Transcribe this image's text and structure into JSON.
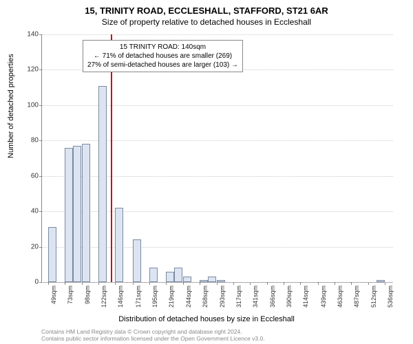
{
  "title_main": "15, TRINITY ROAD, ECCLESHALL, STAFFORD, ST21 6AR",
  "title_sub": "Size of property relative to detached houses in Eccleshall",
  "y_axis_label": "Number of detached properties",
  "x_axis_label": "Distribution of detached houses by size in Eccleshall",
  "annotation": {
    "line1": "15 TRINITY ROAD: 140sqm",
    "line2": "← 71% of detached houses are smaller (269)",
    "line3": "27% of semi-detached houses are larger (103) →"
  },
  "footer_line1": "Contains HM Land Registry data © Crown copyright and database right 2024.",
  "footer_line2": "Contains public sector information licensed under the Open Government Licence v3.0.",
  "chart": {
    "type": "histogram",
    "ylim": [
      0,
      140
    ],
    "ytick_step": 20,
    "marker_x_value": 140,
    "marker_color": "#cc0000",
    "bar_fill": "#dce4f2",
    "bar_border": "#7a8aa0",
    "grid_color": "#cccccc",
    "background_color": "#ffffff",
    "x_labels": [
      "49sqm",
      "73sqm",
      "98sqm",
      "122sqm",
      "146sqm",
      "171sqm",
      "195sqm",
      "219sqm",
      "244sqm",
      "268sqm",
      "293sqm",
      "317sqm",
      "341sqm",
      "366sqm",
      "390sqm",
      "414sqm",
      "439sqm",
      "463sqm",
      "487sqm",
      "512sqm",
      "536sqm"
    ],
    "x_values": [
      49,
      73,
      98,
      122,
      146,
      171,
      195,
      219,
      244,
      268,
      293,
      317,
      341,
      366,
      390,
      414,
      439,
      463,
      487,
      512,
      536
    ],
    "bars": [
      {
        "x": 49,
        "h": 31
      },
      {
        "x": 61,
        "h": 0
      },
      {
        "x": 73,
        "h": 76
      },
      {
        "x": 85,
        "h": 77
      },
      {
        "x": 98,
        "h": 78
      },
      {
        "x": 110,
        "h": 0
      },
      {
        "x": 122,
        "h": 111
      },
      {
        "x": 134,
        "h": 0
      },
      {
        "x": 146,
        "h": 42
      },
      {
        "x": 158,
        "h": 0
      },
      {
        "x": 171,
        "h": 24
      },
      {
        "x": 183,
        "h": 0
      },
      {
        "x": 195,
        "h": 8
      },
      {
        "x": 207,
        "h": 0
      },
      {
        "x": 219,
        "h": 6
      },
      {
        "x": 231,
        "h": 8
      },
      {
        "x": 244,
        "h": 3
      },
      {
        "x": 256,
        "h": 0
      },
      {
        "x": 268,
        "h": 1
      },
      {
        "x": 280,
        "h": 3
      },
      {
        "x": 293,
        "h": 1
      },
      {
        "x": 305,
        "h": 0
      },
      {
        "x": 317,
        "h": 0
      },
      {
        "x": 329,
        "h": 0
      },
      {
        "x": 341,
        "h": 0
      },
      {
        "x": 353,
        "h": 0
      },
      {
        "x": 366,
        "h": 0
      },
      {
        "x": 378,
        "h": 0
      },
      {
        "x": 390,
        "h": 0
      },
      {
        "x": 402,
        "h": 0
      },
      {
        "x": 414,
        "h": 0
      },
      {
        "x": 426,
        "h": 0
      },
      {
        "x": 439,
        "h": 0
      },
      {
        "x": 451,
        "h": 0
      },
      {
        "x": 463,
        "h": 0
      },
      {
        "x": 475,
        "h": 0
      },
      {
        "x": 487,
        "h": 0
      },
      {
        "x": 499,
        "h": 0
      },
      {
        "x": 512,
        "h": 0
      },
      {
        "x": 524,
        "h": 1
      }
    ],
    "x_min": 40,
    "x_max": 548,
    "bar_width_sqm": 12
  }
}
